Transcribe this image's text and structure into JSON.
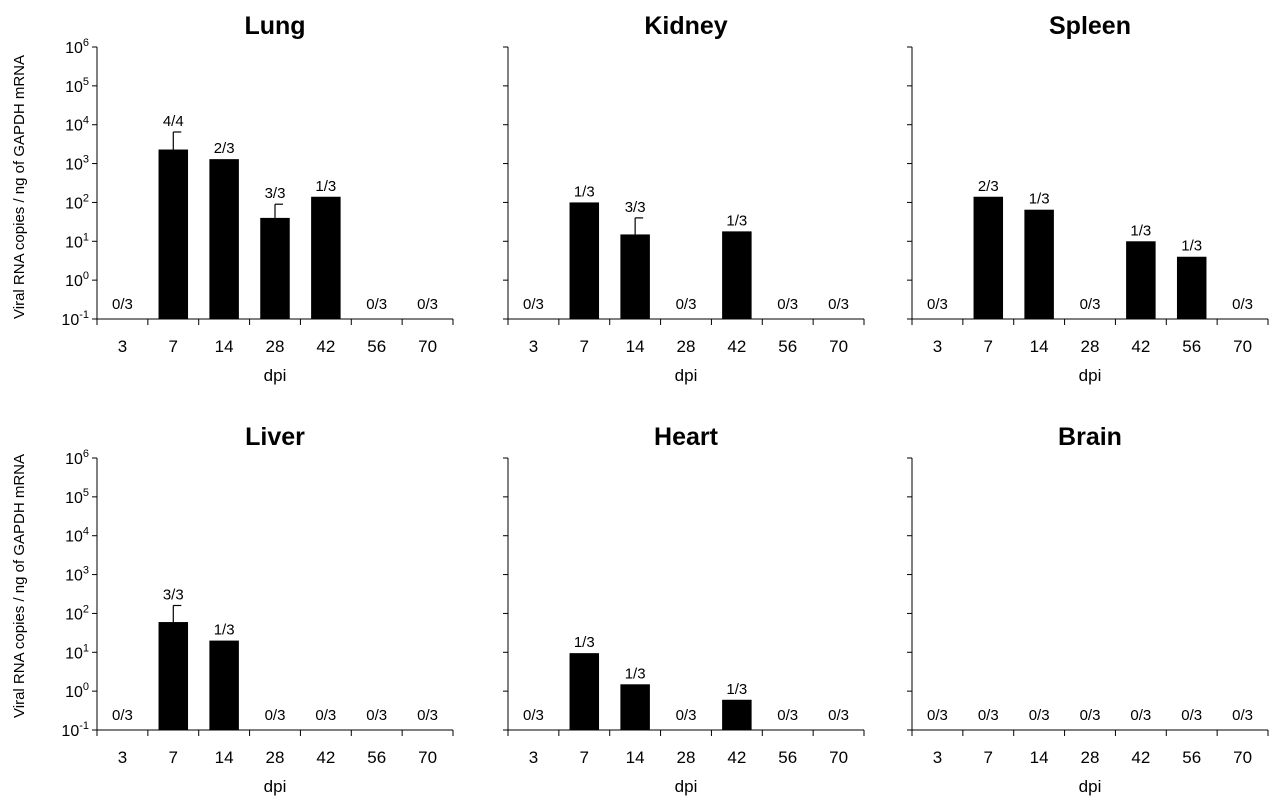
{
  "ylabel": "Viral RNA copies / ng of GAPDH mRNA",
  "chart_data": [
    {
      "type": "bar",
      "title": "Lung",
      "xlabel": "dpi",
      "ylabel": "Viral RNA copies / ng of GAPDH mRNA",
      "y_scale": "log",
      "ylim": [
        0.1,
        1000000
      ],
      "ytick_labels": [
        "10-1",
        "100",
        "101",
        "102",
        "103",
        "104",
        "105",
        "106"
      ],
      "categories": [
        "3",
        "7",
        "14",
        "28",
        "42",
        "56",
        "70"
      ],
      "values": [
        null,
        2300,
        1300,
        40,
        140,
        null,
        null
      ],
      "error_upper": [
        null,
        6500,
        null,
        90,
        null,
        null,
        null
      ],
      "ratio_labels": [
        "0/3",
        "4/4",
        "2/3",
        "3/3",
        "1/3",
        "0/3",
        "0/3"
      ],
      "bar_color": "#000000"
    },
    {
      "type": "bar",
      "title": "Kidney",
      "xlabel": "dpi",
      "y_scale": "log",
      "ylim": [
        0.1,
        1000000
      ],
      "categories": [
        "3",
        "7",
        "14",
        "28",
        "42",
        "56",
        "70"
      ],
      "values": [
        null,
        100,
        15,
        null,
        18,
        null,
        null
      ],
      "error_upper": [
        null,
        null,
        40,
        null,
        null,
        null,
        null
      ],
      "ratio_labels": [
        "0/3",
        "1/3",
        "3/3",
        "0/3",
        "1/3",
        "0/3",
        "0/3"
      ],
      "bar_color": "#000000"
    },
    {
      "type": "bar",
      "title": "Spleen",
      "xlabel": "dpi",
      "y_scale": "log",
      "ylim": [
        0.1,
        1000000
      ],
      "categories": [
        "3",
        "7",
        "14",
        "28",
        "42",
        "56",
        "70"
      ],
      "values": [
        null,
        140,
        65,
        null,
        10,
        4,
        null
      ],
      "error_upper": [
        null,
        null,
        null,
        null,
        null,
        null,
        null
      ],
      "ratio_labels": [
        "0/3",
        "2/3",
        "1/3",
        "0/3",
        "1/3",
        "1/3",
        "0/3"
      ],
      "bar_color": "#000000"
    },
    {
      "type": "bar",
      "title": "Liver",
      "xlabel": "dpi",
      "ylabel": "Viral RNA copies / ng of GAPDH mRNA",
      "y_scale": "log",
      "ylim": [
        0.1,
        1000000
      ],
      "ytick_labels": [
        "10-1",
        "100",
        "101",
        "102",
        "103",
        "104",
        "105",
        "106"
      ],
      "categories": [
        "3",
        "7",
        "14",
        "28",
        "42",
        "56",
        "70"
      ],
      "values": [
        null,
        60,
        20,
        null,
        null,
        null,
        null
      ],
      "error_upper": [
        null,
        160,
        null,
        null,
        null,
        null,
        null
      ],
      "ratio_labels": [
        "0/3",
        "3/3",
        "1/3",
        "0/3",
        "0/3",
        "0/3",
        "0/3"
      ],
      "bar_color": "#000000"
    },
    {
      "type": "bar",
      "title": "Heart",
      "xlabel": "dpi",
      "y_scale": "log",
      "ylim": [
        0.1,
        1000000
      ],
      "categories": [
        "3",
        "7",
        "14",
        "28",
        "42",
        "56",
        "70"
      ],
      "values": [
        null,
        9.5,
        1.5,
        null,
        0.6,
        null,
        null
      ],
      "error_upper": [
        null,
        null,
        null,
        null,
        null,
        null,
        null
      ],
      "ratio_labels": [
        "0/3",
        "1/3",
        "1/3",
        "0/3",
        "1/3",
        "0/3",
        "0/3"
      ],
      "bar_color": "#000000"
    },
    {
      "type": "bar",
      "title": "Brain",
      "xlabel": "dpi",
      "y_scale": "log",
      "ylim": [
        0.1,
        1000000
      ],
      "categories": [
        "3",
        "7",
        "14",
        "28",
        "42",
        "56",
        "70"
      ],
      "values": [
        null,
        null,
        null,
        null,
        null,
        null,
        null
      ],
      "error_upper": [
        null,
        null,
        null,
        null,
        null,
        null,
        null
      ],
      "ratio_labels": [
        "0/3",
        "0/3",
        "0/3",
        "0/3",
        "0/3",
        "0/3",
        "0/3"
      ],
      "bar_color": "#000000"
    }
  ]
}
